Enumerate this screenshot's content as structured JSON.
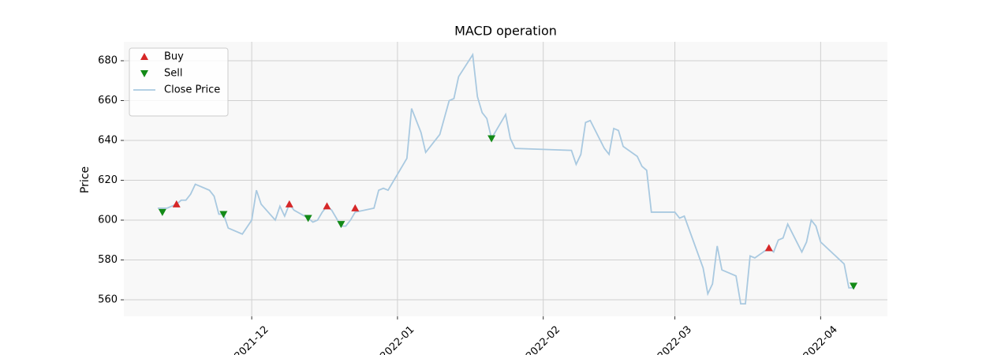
{
  "chart_data": {
    "type": "line",
    "title": "MACD operation",
    "y_label": "Price",
    "series": [
      {
        "name": "Buy",
        "style": "scatter",
        "marker": "up",
        "color": "#d62728",
        "x": [
          18946,
          18970,
          18978,
          18984,
          19072
        ],
        "values": [
          608,
          608,
          607,
          606,
          586
        ]
      },
      {
        "name": "Sell",
        "style": "scatter",
        "marker": "down",
        "color": "#138a17",
        "x": [
          18943,
          18956,
          18974,
          18981,
          19013,
          19090
        ],
        "values": [
          604,
          603,
          601,
          598,
          641,
          567
        ]
      },
      {
        "name": "Close Price",
        "style": "line",
        "color": "#a9c9e0",
        "x": [
          18942,
          18944,
          18946,
          18947,
          18948,
          18949,
          18950,
          18953,
          18954,
          18955,
          18956,
          18957,
          18960,
          18962,
          18963,
          18964,
          18967,
          18968,
          18969,
          18970,
          18971,
          18974,
          18975,
          18976,
          18977,
          18978,
          18979,
          18981,
          18982,
          18983,
          18984,
          18988,
          18989,
          18990,
          18991,
          18995,
          18996,
          18998,
          18999,
          19002,
          19004,
          19005,
          19006,
          19009,
          19010,
          19011,
          19012,
          19013,
          19016,
          19017,
          19018,
          19030,
          19031,
          19032,
          19033,
          19034,
          19037,
          19038,
          19039,
          19040,
          19041,
          19044,
          19045,
          19046,
          19047,
          19052,
          19053,
          19054,
          19058,
          19059,
          19060,
          19061,
          19062,
          19065,
          19066,
          19067,
          19068,
          19069,
          19072,
          19073,
          19074,
          19075,
          19076,
          19079,
          19080,
          19081,
          19082,
          19083,
          19088,
          19089,
          19090
        ],
        "values": [
          606,
          606,
          608,
          610,
          610,
          613,
          618,
          615,
          612,
          603,
          603,
          596,
          593,
          600,
          615,
          608,
          600,
          607,
          602,
          608,
          605,
          601,
          599,
          600,
          604,
          607,
          605,
          597,
          597,
          600,
          604,
          606,
          615,
          616,
          615,
          631,
          656,
          644,
          634,
          643,
          660,
          661,
          672,
          683,
          662,
          654,
          651,
          641,
          653,
          641,
          636,
          635,
          628,
          633,
          649,
          650,
          636,
          633,
          646,
          645,
          637,
          632,
          627,
          625,
          604,
          604,
          601,
          602,
          576,
          563,
          568,
          587,
          575,
          572,
          558,
          558,
          582,
          581,
          586,
          584,
          590,
          591,
          598,
          584,
          589,
          600,
          597,
          589,
          578,
          566,
          566
        ]
      }
    ],
    "xlim": [
      18934.8,
      19097.2
    ],
    "xticks": [
      {
        "value": 18962,
        "label": "2021-12"
      },
      {
        "value": 18993,
        "label": "2022-01"
      },
      {
        "value": 19024,
        "label": "2022-02"
      },
      {
        "value": 19052,
        "label": "2022-03"
      },
      {
        "value": 19083,
        "label": "2022-04"
      }
    ],
    "ylim": [
      551.7,
      689.5
    ],
    "yticks": [
      560,
      580,
      600,
      620,
      640,
      660,
      680
    ],
    "grid": true,
    "legend": "upper-left"
  }
}
